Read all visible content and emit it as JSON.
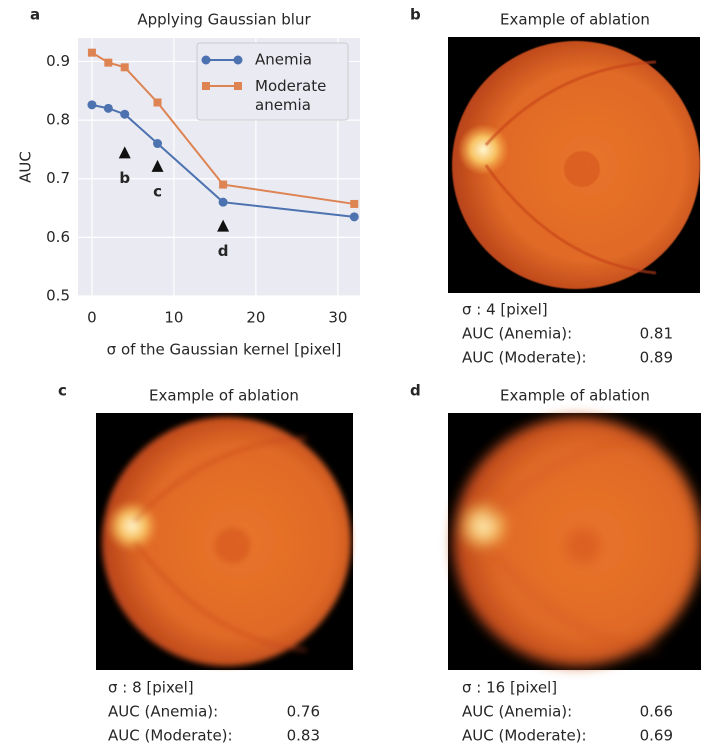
{
  "chart_data": {
    "type": "line",
    "panel_label": "a",
    "title": "Applying Gaussian blur",
    "x_label": "σ of the Gaussian kernel [pixel]",
    "y_label": "AUC",
    "x": [
      0,
      2,
      4,
      8,
      16,
      32
    ],
    "series": [
      {
        "name": "Anemia",
        "color": "#4c72b0",
        "marker": "circle",
        "values": [
          0.826,
          0.82,
          0.81,
          0.76,
          0.66,
          0.635
        ]
      },
      {
        "name": "Moderate anemia",
        "color": "#dd8452",
        "marker": "square",
        "values": [
          0.915,
          0.898,
          0.89,
          0.83,
          0.69,
          0.657
        ]
      }
    ],
    "xlim": [
      -1.7,
      32.7
    ],
    "ylim": [
      0.5,
      0.94
    ],
    "xticks": [
      0,
      10,
      20,
      30
    ],
    "yticks": [
      0.5,
      0.6,
      0.7,
      0.8,
      0.9
    ],
    "grid": true,
    "legend": "upper right",
    "annotations": [
      {
        "text": "b",
        "x": 4,
        "y": 0.745
      },
      {
        "text": "c",
        "x": 8,
        "y": 0.722
      },
      {
        "text": "d",
        "x": 16,
        "y": 0.62
      }
    ]
  },
  "panels": [
    {
      "label": "b",
      "title": "Example of ablation",
      "sigma": "σ : 4 [pixel]",
      "rows": [
        {
          "label": "AUC (Anemia):",
          "value": 0.81
        },
        {
          "label": "AUC (Moderate):",
          "value": 0.89
        }
      ]
    },
    {
      "label": "c",
      "title": "Example of ablation",
      "sigma": "σ : 8 [pixel]",
      "rows": [
        {
          "label": "AUC (Anemia):",
          "value": 0.76
        },
        {
          "label": "AUC (Moderate):",
          "value": 0.83
        }
      ]
    },
    {
      "label": "d",
      "title": "Example of ablation",
      "sigma": "σ : 16 [pixel]",
      "rows": [
        {
          "label": "AUC (Anemia):",
          "value": 0.66
        },
        {
          "label": "AUC (Moderate):",
          "value": 0.69
        }
      ]
    }
  ]
}
